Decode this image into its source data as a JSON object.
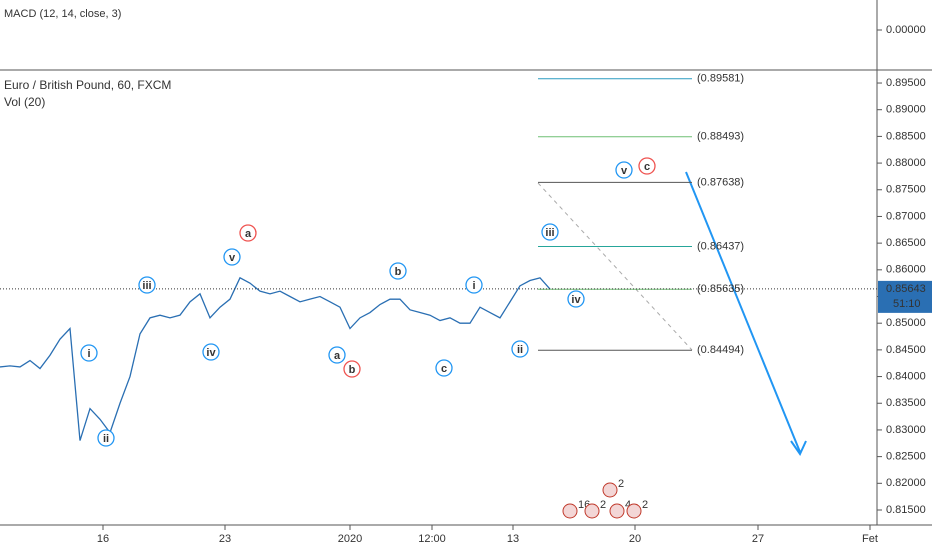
{
  "header": {
    "macd_label": "MACD (12, 14, close, 3)",
    "title": "Euro / British Pound, 60, FXCM",
    "vol_label": "Vol (20)"
  },
  "chart_data": {
    "type": "line",
    "color": "#2a6fb3",
    "values": [
      0.8418,
      0.842,
      0.8418,
      0.843,
      0.8415,
      0.844,
      0.847,
      0.849,
      0.828,
      0.834,
      0.832,
      0.8295,
      0.835,
      0.84,
      0.848,
      0.851,
      0.8515,
      0.851,
      0.8515,
      0.854,
      0.8555,
      0.851,
      0.853,
      0.8545,
      0.8585,
      0.8575,
      0.856,
      0.8555,
      0.856,
      0.855,
      0.854,
      0.8545,
      0.855,
      0.854,
      0.853,
      0.849,
      0.851,
      0.852,
      0.8535,
      0.8545,
      0.8545,
      0.8525,
      0.852,
      0.8515,
      0.8505,
      0.851,
      0.85,
      0.85,
      0.853,
      0.852,
      0.851,
      0.854,
      0.857,
      0.858,
      0.8585,
      0.8564
    ],
    "ylim": [
      0.81275,
      0.89744
    ],
    "yticks": [
      {
        "value": 0.815,
        "label": "0.81500"
      },
      {
        "value": 0.82,
        "label": "0.82000"
      },
      {
        "value": 0.825,
        "label": "0.82500"
      },
      {
        "value": 0.83,
        "label": "0.83000"
      },
      {
        "value": 0.835,
        "label": "0.83500"
      },
      {
        "value": 0.84,
        "label": "0.84000"
      },
      {
        "value": 0.845,
        "label": "0.84500"
      },
      {
        "value": 0.85,
        "label": "0.85000"
      },
      {
        "value": 0.855,
        "label": "0.85500"
      },
      {
        "value": 0.86,
        "label": "0.86000"
      },
      {
        "value": 0.865,
        "label": "0.86500"
      },
      {
        "value": 0.87,
        "label": "0.87000"
      },
      {
        "value": 0.875,
        "label": "0.87500"
      },
      {
        "value": 0.88,
        "label": "0.88000"
      },
      {
        "value": 0.885,
        "label": "0.88500"
      },
      {
        "value": 0.89,
        "label": "0.89000"
      },
      {
        "value": 0.895,
        "label": "0.89500"
      }
    ],
    "xticks": [
      "16",
      "23",
      "2020",
      "12:00",
      "13",
      "20",
      "27",
      "Fet"
    ],
    "macd_yticks": [
      {
        "value": 0,
        "label": "0.00000"
      }
    ],
    "levels": {
      "values": [
        0.89581,
        0.88493,
        0.87638,
        0.86437,
        0.85635,
        0.84494
      ],
      "value_labels": [
        "(0.89581)",
        "(0.88493)",
        "(0.87638)",
        "(0.86437)",
        "(0.85635)",
        "(0.84494)"
      ],
      "colors": [
        "#2a9bc0",
        "#6fbf73",
        "#555555",
        "#26a69a",
        "#6fbf73",
        "#555555"
      ]
    },
    "last_price": {
      "value": 0.85643,
      "label": "0.85643"
    },
    "countdown": "51:10",
    "wave_labels": {
      "texts": [
        "i",
        "ii",
        "iii",
        "iv",
        "v",
        "a",
        "a",
        "b",
        "b",
        "c",
        "i",
        "ii",
        "iii",
        "iv",
        "v",
        "c"
      ],
      "colors": [
        "#2196f3",
        "#2196f3",
        "#2196f3",
        "#2196f3",
        "#2196f3",
        "#ef5350",
        "#2196f3",
        "#ef5350",
        "#2196f3",
        "#2196f3",
        "#2196f3",
        "#2196f3",
        "#2196f3",
        "#2196f3",
        "#2196f3",
        "#ef5350"
      ]
    },
    "events": [
      "16",
      "2",
      "2",
      "4",
      "2"
    ]
  }
}
